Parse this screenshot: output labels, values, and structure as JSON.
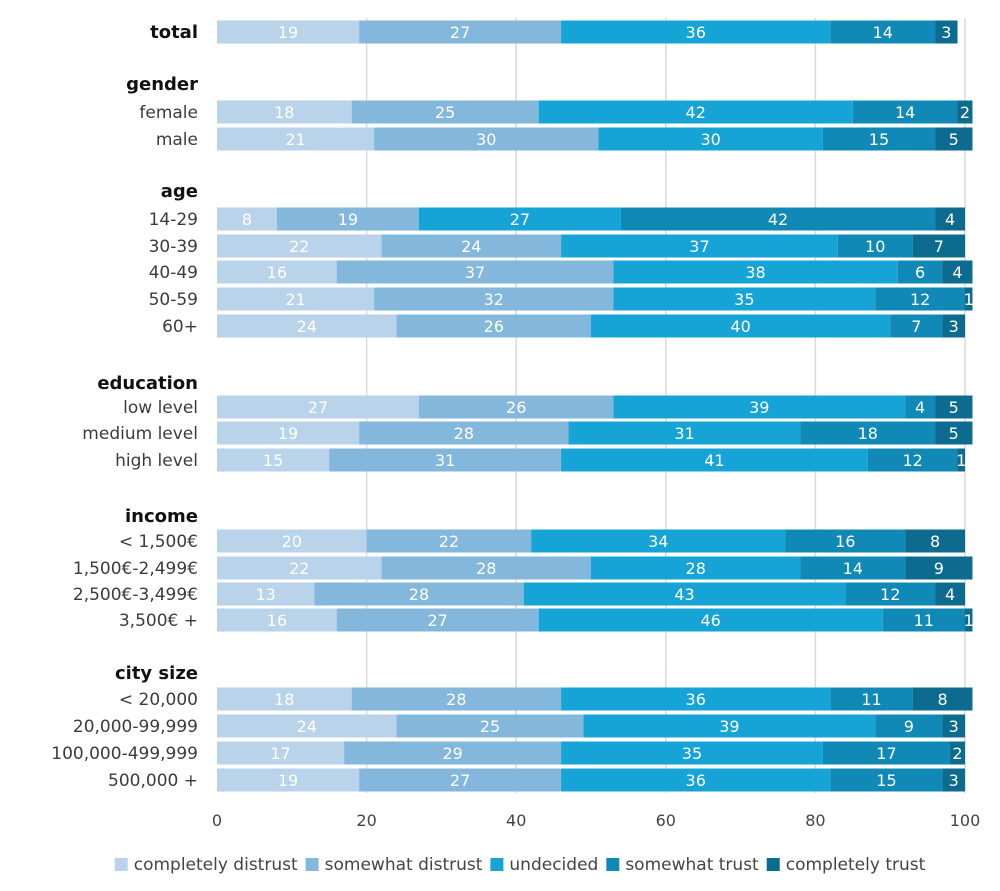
{
  "chart_data": {
    "type": "bar",
    "orientation": "horizontal",
    "stacked": true,
    "xlim": [
      0,
      100
    ],
    "ticks": [
      0,
      20,
      40,
      60,
      80,
      100
    ],
    "grid": true,
    "legend_position": "bottom",
    "series_names": [
      "completely distrust",
      "somewhat distrust",
      "undecided",
      "somewhat trust",
      "completely trust"
    ],
    "colors": [
      "#b9d3ea",
      "#83b7dc",
      "#16a3d6",
      "#1089b6",
      "#0d6b8f"
    ],
    "rows": [
      {
        "kind": "group",
        "label": "total",
        "values": [
          19,
          27,
          36,
          14,
          3
        ]
      },
      {
        "kind": "header",
        "label": "gender"
      },
      {
        "kind": "category",
        "label": "female",
        "values": [
          18,
          25,
          42,
          14,
          2
        ]
      },
      {
        "kind": "category",
        "label": "male",
        "values": [
          21,
          30,
          30,
          15,
          5
        ]
      },
      {
        "kind": "header",
        "label": "age"
      },
      {
        "kind": "category",
        "label": "14-29",
        "values": [
          8,
          19,
          27,
          42,
          4
        ]
      },
      {
        "kind": "category",
        "label": "30-39",
        "values": [
          22,
          24,
          37,
          10,
          7
        ]
      },
      {
        "kind": "category",
        "label": "40-49",
        "values": [
          16,
          37,
          38,
          6,
          4
        ]
      },
      {
        "kind": "category",
        "label": "50-59",
        "values": [
          21,
          32,
          35,
          12,
          1
        ]
      },
      {
        "kind": "category",
        "label": "60+",
        "values": [
          24,
          26,
          40,
          7,
          3
        ]
      },
      {
        "kind": "header",
        "label": "education"
      },
      {
        "kind": "category",
        "label": "low level",
        "values": [
          27,
          26,
          39,
          4,
          5
        ]
      },
      {
        "kind": "category",
        "label": "medium level",
        "values": [
          19,
          28,
          31,
          18,
          5
        ]
      },
      {
        "kind": "category",
        "label": "high level",
        "values": [
          15,
          31,
          41,
          12,
          1
        ]
      },
      {
        "kind": "header",
        "label": "income"
      },
      {
        "kind": "category",
        "label": "< 1,500€",
        "values": [
          20,
          22,
          34,
          16,
          8
        ]
      },
      {
        "kind": "category",
        "label": "1,500€-2,499€",
        "values": [
          22,
          28,
          28,
          14,
          9
        ]
      },
      {
        "kind": "category",
        "label": "2,500€-3,499€",
        "values": [
          13,
          28,
          43,
          12,
          4
        ]
      },
      {
        "kind": "category",
        "label": "3,500€ +",
        "values": [
          16,
          27,
          46,
          11,
          1
        ]
      },
      {
        "kind": "header",
        "label": "city size"
      },
      {
        "kind": "category",
        "label": "< 20,000",
        "values": [
          18,
          28,
          36,
          11,
          8
        ]
      },
      {
        "kind": "category",
        "label": "20,000-99,999",
        "values": [
          24,
          25,
          39,
          9,
          3
        ]
      },
      {
        "kind": "category",
        "label": "100,000-499,999",
        "values": [
          17,
          29,
          35,
          17,
          2
        ]
      },
      {
        "kind": "category",
        "label": "500,000 +",
        "values": [
          19,
          27,
          36,
          15,
          3
        ]
      }
    ]
  }
}
